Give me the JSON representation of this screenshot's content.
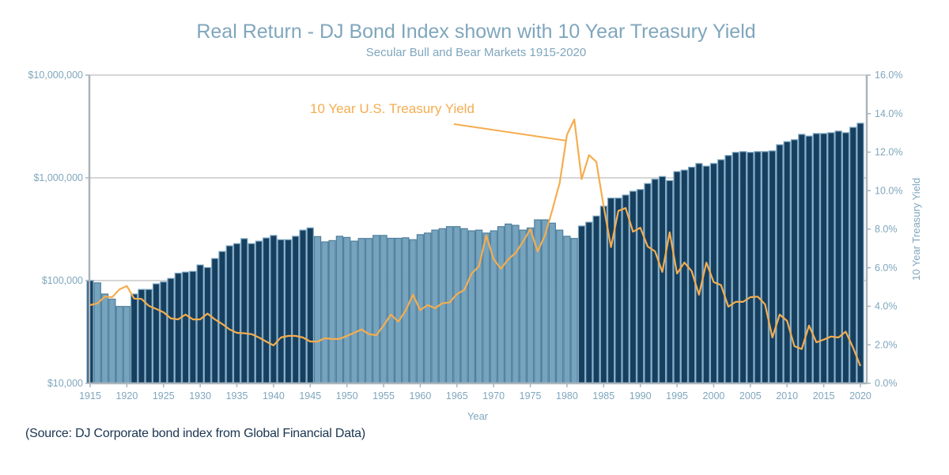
{
  "chart_data": {
    "type": "bar+line",
    "title": "Real Return - DJ Bond Index shown with 10 Year Treasury Yield",
    "subtitle": "Secular Bull and Bear Markets 1915-2020",
    "xlabel": "Year",
    "ylabel": "",
    "y2label": "10 Year Treasury Yield",
    "y_scale": "log",
    "ylim": [
      10000,
      10000000
    ],
    "y_ticks": [
      "$10,000",
      "$100,000",
      "$1,000,000",
      "$10,000,000"
    ],
    "y2lim": [
      0,
      16
    ],
    "y2_ticks": [
      "0.0%",
      "2.0%",
      "4.0%",
      "6.0%",
      "8.0%",
      "10.0%",
      "12.0%",
      "14.0%",
      "16.0%"
    ],
    "x_ticks": [
      "1915",
      "1920",
      "1925",
      "1930",
      "1935",
      "1940",
      "1945",
      "1950",
      "1955",
      "1960",
      "1965",
      "1970",
      "1975",
      "1980",
      "1985",
      "1990",
      "1995",
      "2000",
      "2005",
      "2010",
      "2015",
      "2020"
    ],
    "grid": "horizontal",
    "colors": {
      "bull": "#163f5f",
      "bear": "#76a3bd",
      "yield": "#f5ad4f"
    },
    "annotation": "10 Year U.S. Treasury Yield",
    "years_start": 1915,
    "markets": [
      {
        "type": "bull",
        "from": 1915,
        "to": 1915
      },
      {
        "type": "bear",
        "from": 1916,
        "to": 1920
      },
      {
        "type": "bull",
        "from": 1921,
        "to": 1945
      },
      {
        "type": "bear",
        "from": 1946,
        "to": 1981
      },
      {
        "type": "bull",
        "from": 1982,
        "to": 2020
      }
    ],
    "series": [
      {
        "type": "bar",
        "values": [
          100000,
          95000,
          74000,
          66000,
          56000,
          56000,
          74000,
          82000,
          82000,
          93000,
          97000,
          105000,
          118000,
          121000,
          123000,
          142000,
          134000,
          164000,
          192000,
          218000,
          229000,
          256000,
          229000,
          242000,
          260000,
          275000,
          250000,
          250000,
          270000,
          310000,
          326000,
          268000,
          238000,
          245000,
          270000,
          263000,
          242000,
          257000,
          257000,
          275000,
          275000,
          258000,
          258000,
          261000,
          250000,
          280000,
          290000,
          310000,
          320000,
          335000,
          335000,
          320000,
          305000,
          310000,
          290000,
          305000,
          335000,
          355000,
          345000,
          310000,
          325000,
          390000,
          390000,
          362000,
          310000,
          270000,
          257000,
          340000,
          370000,
          425000,
          530000,
          635000,
          635000,
          680000,
          740000,
          770000,
          880000,
          970000,
          1030000,
          940000,
          1150000,
          1190000,
          1270000,
          1380000,
          1300000,
          1380000,
          1500000,
          1650000,
          1770000,
          1800000,
          1770000,
          1800000,
          1800000,
          1830000,
          2100000,
          2250000,
          2350000,
          2650000,
          2550000,
          2700000,
          2700000,
          2750000,
          2850000,
          2750000,
          3100000,
          3400000
        ]
      },
      {
        "name": "10 Year U.S. Treasury Yield",
        "type": "line",
        "values": [
          4.06,
          4.15,
          4.5,
          4.47,
          4.88,
          5.05,
          4.4,
          4.38,
          4.02,
          3.86,
          3.69,
          3.37,
          3.32,
          3.57,
          3.32,
          3.32,
          3.62,
          3.32,
          3.08,
          2.8,
          2.62,
          2.6,
          2.55,
          2.38,
          2.17,
          1.97,
          2.38,
          2.46,
          2.46,
          2.38,
          2.17,
          2.17,
          2.34,
          2.3,
          2.3,
          2.46,
          2.62,
          2.8,
          2.55,
          2.5,
          3.0,
          3.57,
          3.2,
          3.77,
          4.6,
          3.8,
          4.06,
          3.9,
          4.15,
          4.2,
          4.63,
          4.85,
          5.7,
          6.07,
          7.67,
          6.44,
          5.95,
          6.44,
          6.77,
          7.35,
          8.0,
          6.85,
          7.67,
          9.0,
          10.4,
          12.9,
          13.7,
          10.6,
          11.85,
          11.5,
          9.2,
          7.07,
          8.95,
          9.1,
          7.87,
          8.08,
          7.1,
          6.85,
          5.78,
          7.84,
          5.7,
          6.27,
          5.82,
          4.6,
          6.27,
          5.25,
          5.1,
          3.98,
          4.23,
          4.23,
          4.47,
          4.5,
          4.1,
          2.38,
          3.57,
          3.24,
          1.93,
          1.78,
          3.0,
          2.13,
          2.27,
          2.43,
          2.38,
          2.68,
          1.85,
          0.9
        ]
      }
    ]
  },
  "source": "(Source: DJ Corporate bond index from Global Financial Data)"
}
